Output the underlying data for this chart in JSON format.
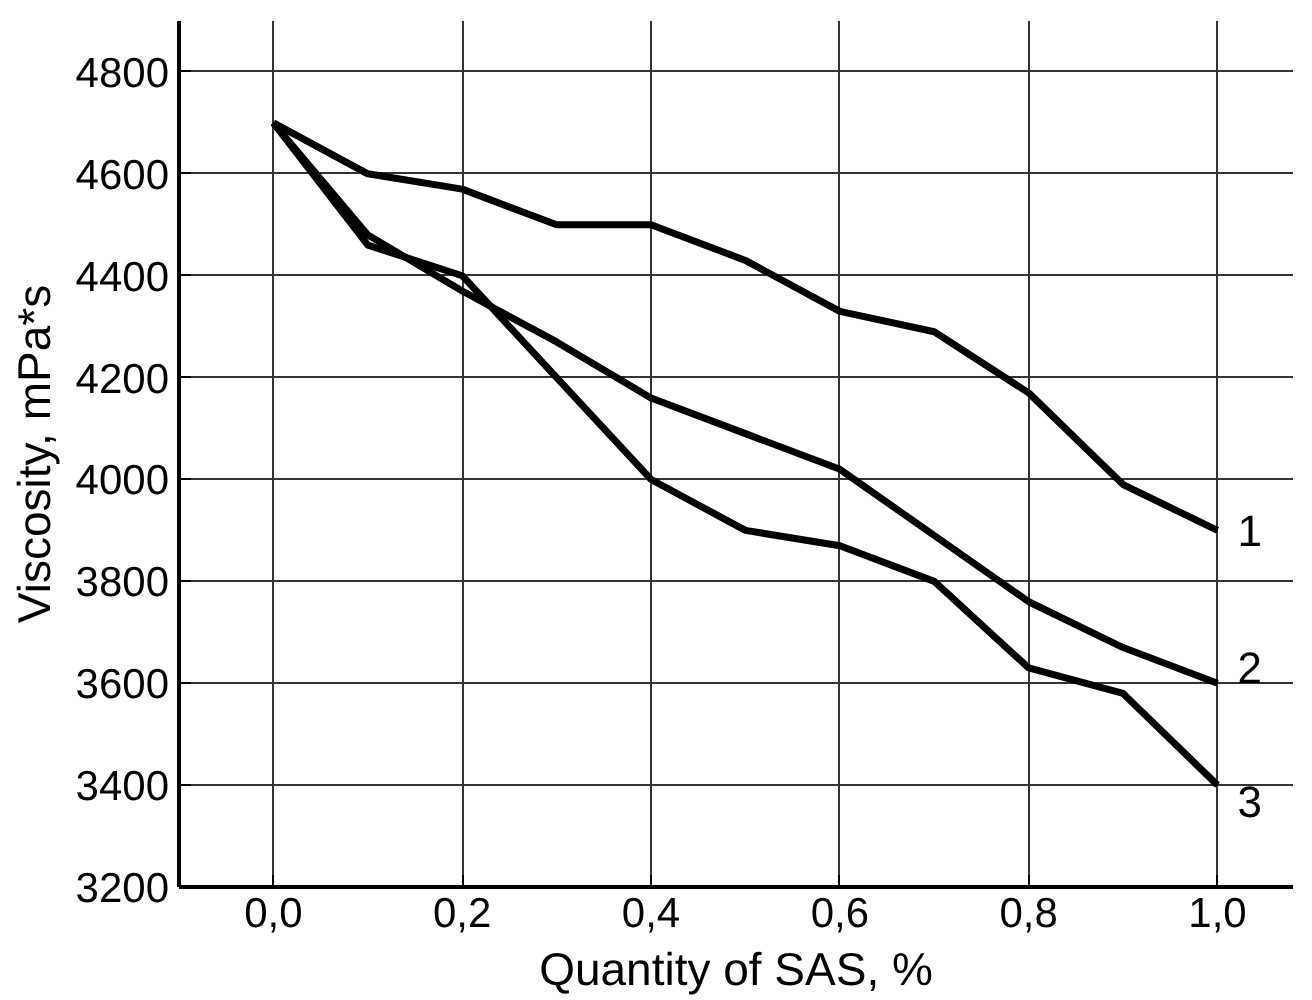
{
  "chart_data": {
    "type": "line",
    "xlabel": "Quantity of SAS, %",
    "ylabel": "Viscosity, mPa*s",
    "x": [
      0,
      0.1,
      0.2,
      0.3,
      0.4,
      0.5,
      0.6,
      0.7,
      0.8,
      0.9,
      1.0
    ],
    "series": [
      {
        "name": "1",
        "color": "#000000",
        "values": [
          4700,
          4600,
          4570,
          4500,
          4500,
          4430,
          4330,
          4290,
          4170,
          3990,
          3900
        ]
      },
      {
        "name": "2",
        "color": "#000000",
        "values": [
          4700,
          4480,
          4370,
          4270,
          4160,
          4090,
          4020,
          3890,
          3760,
          3670,
          3600
        ]
      },
      {
        "name": "3",
        "color": "#000000",
        "values": [
          4700,
          4460,
          4400,
          4200,
          4000,
          3900,
          3870,
          3800,
          3630,
          3580,
          3400
        ]
      }
    ],
    "xlim": [
      -0.1,
      1.08
    ],
    "ylim": [
      3200,
      4900
    ],
    "xticks": [
      {
        "value": 0,
        "label": "0,0"
      },
      {
        "value": 0.2,
        "label": "0,2"
      },
      {
        "value": 0.4,
        "label": "0,4"
      },
      {
        "value": 0.6,
        "label": "0,6"
      },
      {
        "value": 0.8,
        "label": "0,8"
      },
      {
        "value": 1.0,
        "label": "1,0"
      }
    ],
    "yticks": [
      3200,
      3400,
      3600,
      3800,
      4000,
      4200,
      4400,
      4600,
      4800
    ],
    "grid": true,
    "marker": "none",
    "line_style": "solid"
  }
}
